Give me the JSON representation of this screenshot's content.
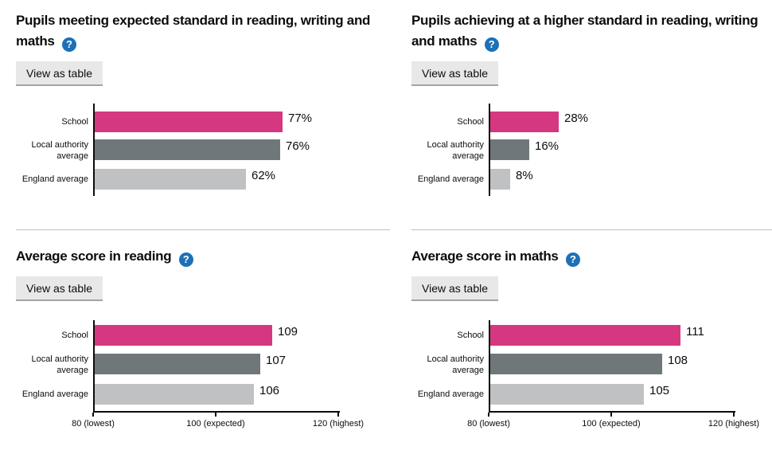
{
  "labels": {
    "view_as_table": "View as table",
    "help_glyph": "?"
  },
  "chart_style": {
    "series_colors": [
      "#d53880",
      "#6f777b",
      "#bfc1c3"
    ],
    "axis_color": "#0b0c0c",
    "divider_color": "#bfc1c3",
    "help_icon_color": "#1d70b8"
  },
  "chart_data": [
    {
      "type": "bar",
      "orientation": "horizontal",
      "title": "Pupils meeting expected standard in reading, writing and maths",
      "categories": [
        "School",
        "Local authority average",
        "England average"
      ],
      "values": [
        77,
        76,
        62
      ],
      "value_labels": [
        "77%",
        "76%",
        "62%"
      ],
      "xlim": [
        0,
        100
      ],
      "x_ticks": [],
      "legend": "none",
      "grid": false
    },
    {
      "type": "bar",
      "orientation": "horizontal",
      "title": "Pupils achieving at a higher standard in reading, writing and maths",
      "categories": [
        "School",
        "Local authority average",
        "England average"
      ],
      "values": [
        28,
        16,
        8
      ],
      "value_labels": [
        "28%",
        "16%",
        "8%"
      ],
      "xlim": [
        0,
        100
      ],
      "x_ticks": [],
      "legend": "none",
      "grid": false
    },
    {
      "type": "bar",
      "orientation": "horizontal",
      "title": "Average score in reading",
      "categories": [
        "School",
        "Local authority average",
        "England average"
      ],
      "values": [
        109,
        107,
        106
      ],
      "value_labels": [
        "109",
        "107",
        "106"
      ],
      "xlim": [
        80,
        120
      ],
      "x_ticks": [
        {
          "value": 80,
          "label": "80 (lowest)"
        },
        {
          "value": 100,
          "label": "100 (expected)"
        },
        {
          "value": 120,
          "label": "120 (highest)"
        }
      ],
      "legend": "none",
      "grid": false
    },
    {
      "type": "bar",
      "orientation": "horizontal",
      "title": "Average score in maths",
      "categories": [
        "School",
        "Local authority average",
        "England average"
      ],
      "values": [
        111,
        108,
        105
      ],
      "value_labels": [
        "111",
        "108",
        "105"
      ],
      "xlim": [
        80,
        120
      ],
      "x_ticks": [
        {
          "value": 80,
          "label": "80 (lowest)"
        },
        {
          "value": 100,
          "label": "100 (expected)"
        },
        {
          "value": 120,
          "label": "120 (highest)"
        }
      ],
      "legend": "none",
      "grid": false
    }
  ]
}
